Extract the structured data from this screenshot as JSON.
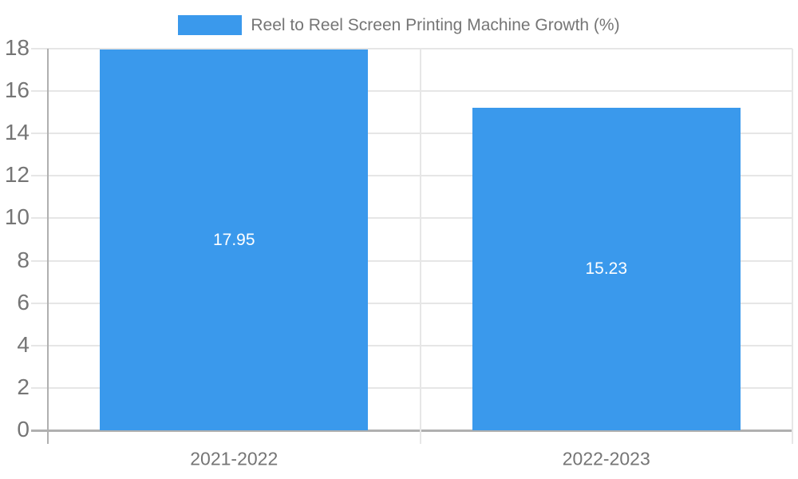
{
  "colors": {
    "bar": "#3A99EC",
    "label_text": "#757575",
    "gridline": "#E6E6E6",
    "axis_line": "#B0B0B0",
    "value_text": "#FFFFFF",
    "background": "#FFFFFF"
  },
  "legend": {
    "label": "Reel to Reel Screen Printing Machine Growth (%)",
    "position": "top"
  },
  "chart_data": {
    "type": "bar",
    "title": "Reel to Reel Screen Printing Machine Growth (%)",
    "categories": [
      "2021-2022",
      "2022-2023"
    ],
    "values": [
      17.95,
      15.23
    ],
    "value_labels": [
      "17.95",
      "15.23"
    ],
    "series": [
      {
        "name": "Reel to Reel Screen Printing Machine Growth (%)",
        "values": [
          17.95,
          15.23
        ]
      }
    ],
    "xlabel": "",
    "ylabel": "",
    "ylim": [
      0,
      18
    ],
    "ytick_step": 2,
    "ytick_values": [
      0,
      2,
      4,
      6,
      8,
      10,
      12,
      14,
      16,
      18
    ],
    "ytick_labels": [
      "0",
      "2",
      "4",
      "6",
      "8",
      "10",
      "12",
      "14",
      "16",
      "18"
    ],
    "grid": true,
    "legend_position": "top"
  }
}
